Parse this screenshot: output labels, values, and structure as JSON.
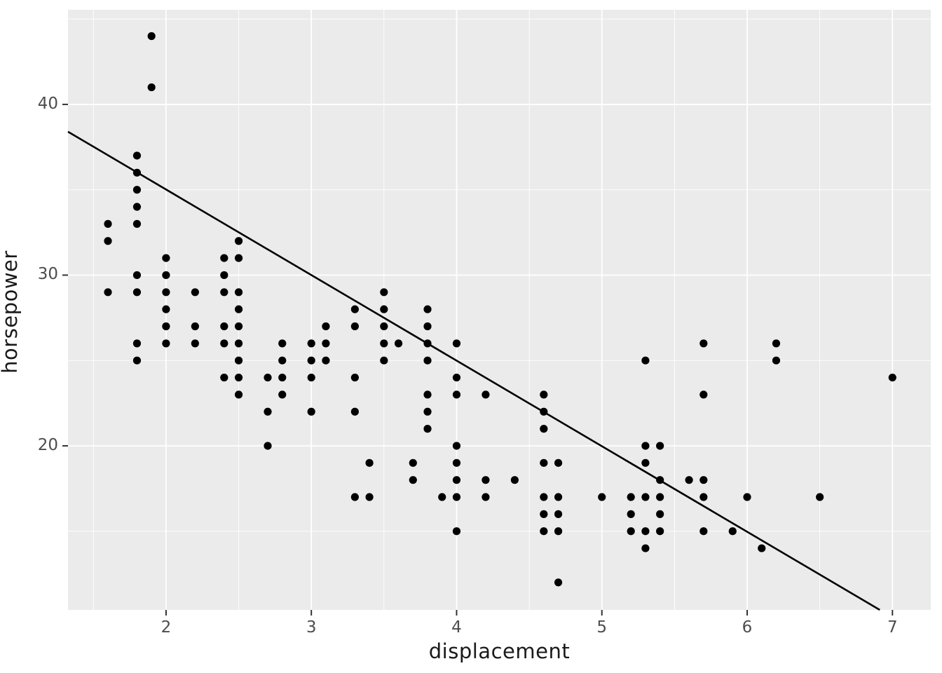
{
  "chart_data": {
    "type": "scatter",
    "title": "",
    "xlabel": "displacement",
    "ylabel": "horsepower",
    "xlim": [
      1.325,
      7.264
    ],
    "ylim": [
      10.39,
      45.54
    ],
    "x_major_ticks": [
      2,
      3,
      4,
      5,
      6,
      7
    ],
    "y_major_ticks": [
      20,
      30,
      40
    ],
    "x_minor_ticks": [
      1.5,
      2.5,
      3.5,
      4.5,
      5.5,
      6.5
    ],
    "y_minor_ticks": [
      15,
      25,
      35,
      45
    ],
    "grid": "on",
    "legend": "none",
    "points": [
      [
        1.6,
        33
      ],
      [
        1.6,
        32
      ],
      [
        1.6,
        29
      ],
      [
        1.8,
        37
      ],
      [
        1.8,
        36
      ],
      [
        1.8,
        35
      ],
      [
        1.8,
        34
      ],
      [
        1.8,
        33
      ],
      [
        1.8,
        30
      ],
      [
        1.8,
        29
      ],
      [
        1.8,
        26
      ],
      [
        1.8,
        25
      ],
      [
        1.9,
        44
      ],
      [
        1.9,
        41
      ],
      [
        2.0,
        31
      ],
      [
        2.0,
        30
      ],
      [
        2.0,
        29
      ],
      [
        2.0,
        28
      ],
      [
        2.0,
        27
      ],
      [
        2.0,
        26
      ],
      [
        2.2,
        29
      ],
      [
        2.2,
        27
      ],
      [
        2.2,
        26
      ],
      [
        2.4,
        31
      ],
      [
        2.4,
        30
      ],
      [
        2.4,
        29
      ],
      [
        2.4,
        27
      ],
      [
        2.4,
        26
      ],
      [
        2.4,
        24
      ],
      [
        2.5,
        32
      ],
      [
        2.5,
        31
      ],
      [
        2.5,
        29
      ],
      [
        2.5,
        28
      ],
      [
        2.5,
        27
      ],
      [
        2.5,
        26
      ],
      [
        2.5,
        25
      ],
      [
        2.5,
        24
      ],
      [
        2.5,
        23
      ],
      [
        2.7,
        24
      ],
      [
        2.7,
        22
      ],
      [
        2.7,
        20
      ],
      [
        2.8,
        26
      ],
      [
        2.8,
        25
      ],
      [
        2.8,
        24
      ],
      [
        2.8,
        23
      ],
      [
        3.0,
        26
      ],
      [
        3.0,
        25
      ],
      [
        3.0,
        24
      ],
      [
        3.0,
        22
      ],
      [
        3.1,
        27
      ],
      [
        3.1,
        26
      ],
      [
        3.1,
        25
      ],
      [
        3.3,
        28
      ],
      [
        3.3,
        27
      ],
      [
        3.3,
        24
      ],
      [
        3.3,
        22
      ],
      [
        3.3,
        17
      ],
      [
        3.4,
        19
      ],
      [
        3.4,
        17
      ],
      [
        3.5,
        29
      ],
      [
        3.5,
        28
      ],
      [
        3.5,
        27
      ],
      [
        3.5,
        26
      ],
      [
        3.5,
        25
      ],
      [
        3.6,
        26
      ],
      [
        3.7,
        19
      ],
      [
        3.7,
        18
      ],
      [
        3.8,
        28
      ],
      [
        3.8,
        27
      ],
      [
        3.8,
        26
      ],
      [
        3.8,
        25
      ],
      [
        3.8,
        23
      ],
      [
        3.8,
        22
      ],
      [
        3.8,
        21
      ],
      [
        3.9,
        17
      ],
      [
        4.0,
        26
      ],
      [
        4.0,
        24
      ],
      [
        4.0,
        23
      ],
      [
        4.0,
        20
      ],
      [
        4.0,
        19
      ],
      [
        4.0,
        18
      ],
      [
        4.0,
        17
      ],
      [
        4.0,
        15
      ],
      [
        4.2,
        23
      ],
      [
        4.2,
        18
      ],
      [
        4.2,
        17
      ],
      [
        4.4,
        18
      ],
      [
        4.6,
        23
      ],
      [
        4.6,
        22
      ],
      [
        4.6,
        21
      ],
      [
        4.6,
        19
      ],
      [
        4.6,
        17
      ],
      [
        4.6,
        16
      ],
      [
        4.6,
        15
      ],
      [
        4.7,
        19
      ],
      [
        4.7,
        17
      ],
      [
        4.7,
        16
      ],
      [
        4.7,
        15
      ],
      [
        4.7,
        12
      ],
      [
        5.0,
        17
      ],
      [
        5.2,
        17
      ],
      [
        5.2,
        16
      ],
      [
        5.2,
        15
      ],
      [
        5.3,
        25
      ],
      [
        5.3,
        20
      ],
      [
        5.3,
        19
      ],
      [
        5.3,
        17
      ],
      [
        5.3,
        15
      ],
      [
        5.3,
        14
      ],
      [
        5.4,
        20
      ],
      [
        5.4,
        18
      ],
      [
        5.4,
        17
      ],
      [
        5.4,
        16
      ],
      [
        5.4,
        15
      ],
      [
        5.6,
        18
      ],
      [
        5.7,
        26
      ],
      [
        5.7,
        23
      ],
      [
        5.7,
        18
      ],
      [
        5.7,
        17
      ],
      [
        5.7,
        15
      ],
      [
        5.9,
        15
      ],
      [
        6.0,
        17
      ],
      [
        6.1,
        14
      ],
      [
        6.2,
        26
      ],
      [
        6.2,
        25
      ],
      [
        6.5,
        17
      ],
      [
        7.0,
        24
      ]
    ],
    "trend_line": {
      "x1": 1.325,
      "y1": 38.4,
      "x2": 6.913,
      "y2": 10.39
    },
    "colors": {
      "panel_background": "#EBEBEB",
      "grid_major": "#FFFFFF",
      "grid_minor": "#FFFFFF",
      "point": "#000000",
      "trend_line": "#000000",
      "tick_mark": "#333333",
      "tick_label": "#4D4D4D",
      "axis_title": "#1A1A1A",
      "figure_background": "#FFFFFF"
    }
  }
}
